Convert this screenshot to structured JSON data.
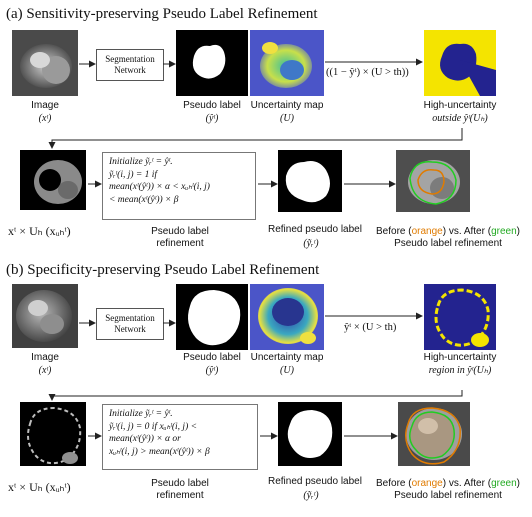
{
  "section_a": {
    "title": "(a) Sensitivity-preserving Pseudo Label Refinement",
    "image_caption": "Image",
    "image_var": "(xᵗ)",
    "seg_box": "Segmentation Network",
    "pseudo_caption": "Pseudo label",
    "pseudo_var": "(ŷᵗ)",
    "uncert_caption": "Uncertainty map",
    "uncert_var": "(U)",
    "arrow_label": "((1 − ŷᵗ) × (U > th))",
    "highunc_caption": "High-uncertainty",
    "highunc_var": "outside ŷᵗ(Uₕ)",
    "masked_label": "xᵗ × Uₕ (xᵤₕᵗ)",
    "formula": [
      "Initialize ỹᵣᵗ = ŷᵗ.",
      "ỹᵣᵗ(i, j) = 1 if",
      "mean(xᵗ(ŷᵗ)) × α < xᵤₕᵗ(i, j)",
      "< mean(xᵗ(ŷᵗ)) × β"
    ],
    "refine_caption_1": "Pseudo label",
    "refine_caption_2": "refinement",
    "refined_caption": "Refined pseudo label",
    "refined_var": "(ỹᵣᵗ)",
    "before_after_1": "Before (",
    "orange_word": "orange",
    "before_after_2": ") vs. After (",
    "green_word": "green",
    "before_after_3": ")",
    "before_after_line2": "Pseudo label refinement"
  },
  "section_b": {
    "title": "(b) Specificity-preserving Pseudo Label Refinement",
    "image_caption": "Image",
    "image_var": "(xᵗ)",
    "seg_box": "Segmentation Network",
    "pseudo_caption": "Pseudo label",
    "pseudo_var": "(ŷᵗ)",
    "uncert_caption": "Uncertainty map",
    "uncert_var": "(U)",
    "arrow_label": "ŷᵗ × (U > th)",
    "highunc_caption": "High-uncertainty",
    "highunc_var": "region in ŷᵗ(Uₕ)",
    "masked_label": "xᵗ × Uₕ (xᵤₕᵗ)",
    "formula": [
      "Initialize ỹᵣᵗ = ŷᵗ.",
      "ỹᵣᵗ(i, j) = 0 if xᵤₕᵗ(i, j) <",
      "mean(xᵗ(ŷᵗ)) × α or",
      "xᵤₕᵗ(i, j) > mean(xᵗ(ŷᵗ)) × β"
    ],
    "refine_caption_1": "Pseudo label",
    "refine_caption_2": "refinement",
    "refined_caption": "Refined pseudo label",
    "refined_var": "(ỹᵣᵗ)",
    "before_after_1": "Before (",
    "orange_word": "orange",
    "before_after_2": ") vs. After (",
    "green_word": "green",
    "before_after_3": ")",
    "before_after_line2": "Pseudo label refinement"
  },
  "colors": {
    "orange": "#e07b00",
    "green": "#22aa22",
    "uncert_yellow": "#f4e400",
    "uncert_blue": "#2a3fa8"
  }
}
